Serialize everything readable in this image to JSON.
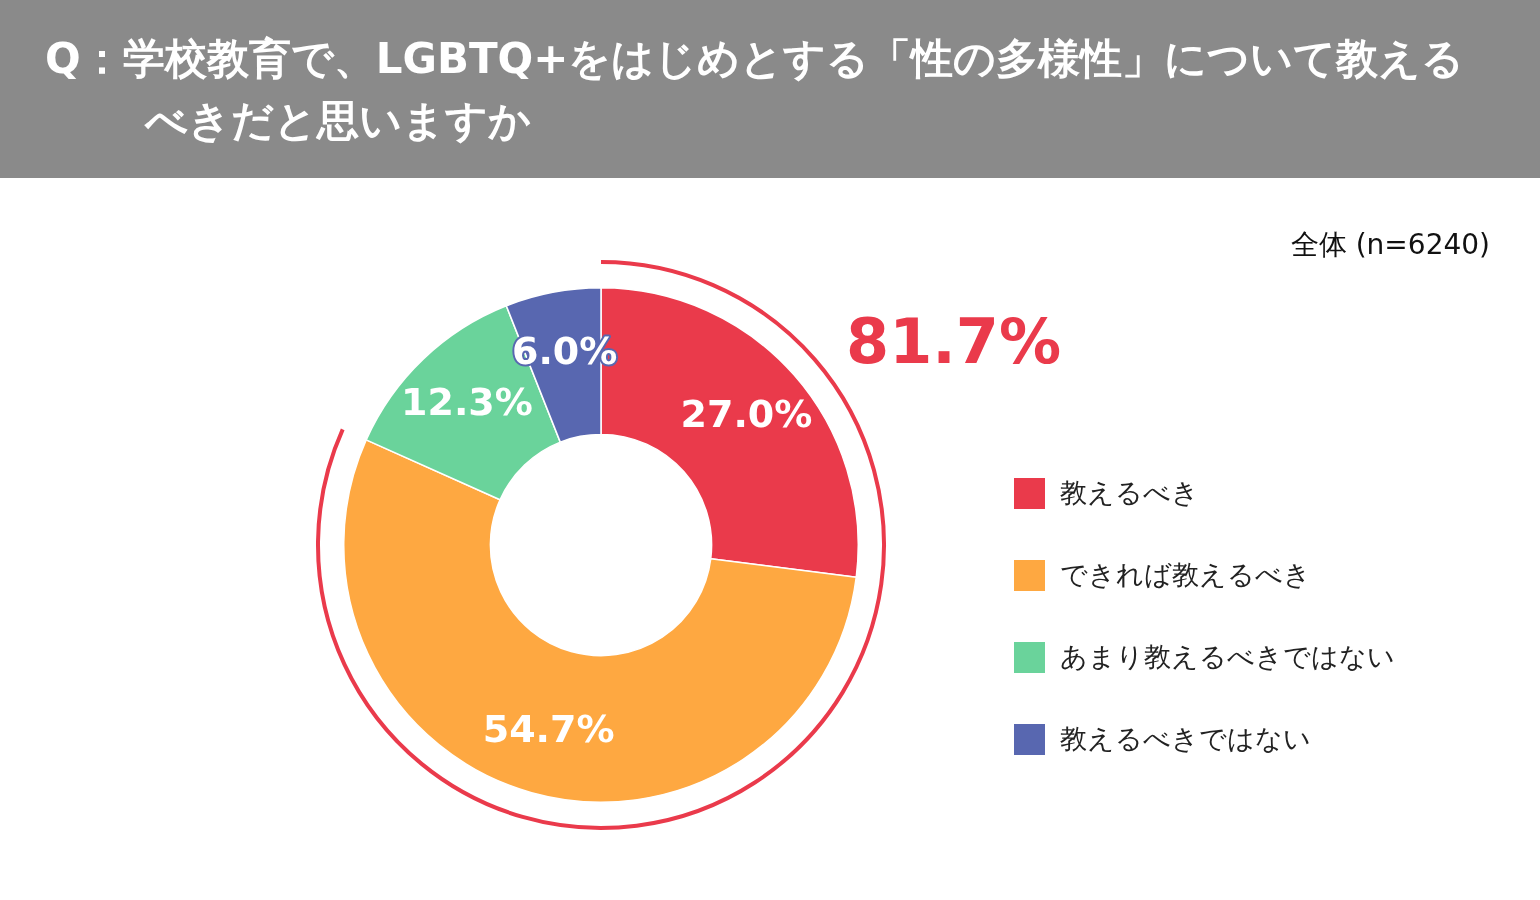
{
  "chart_data": {
    "type": "donut",
    "title": "Q：学校教育で、LGBTQ+をはじめとする「性の多様性」について教えるべきだと思いますか",
    "subtitle": "全体 (n=6240)",
    "categories": [
      "教えるべき",
      "できれば教えるべき",
      "あまり教えるべきではない",
      "教えるべきではない"
    ],
    "values": [
      27.0,
      54.7,
      12.3,
      6.0
    ],
    "colors": [
      "#ea3a4b",
      "#fea841",
      "#6ad39b",
      "#5867b0"
    ],
    "value_labels": [
      "27.0%",
      "54.7%",
      "12.3%",
      "6.0%"
    ],
    "annotations": [
      "81.7%"
    ],
    "legend": "right"
  }
}
